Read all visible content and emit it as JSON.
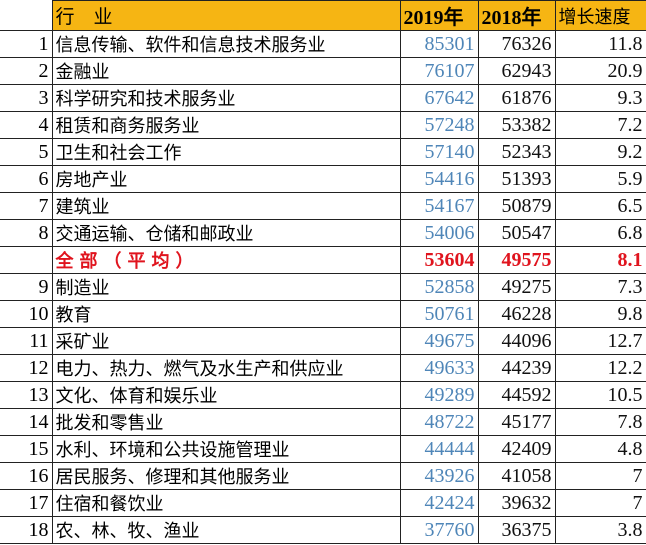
{
  "header": {
    "industry": "行　业",
    "y2019": "2019年",
    "y2018": "2018年",
    "growth": "增长速度"
  },
  "colors": {
    "header_bg": "#F6B513",
    "value_2019": "#4F86B8",
    "average_row": "#E0141E"
  },
  "rows": [
    {
      "idx": "1",
      "name": "信息传输、软件和信息技术服务业",
      "v2019": "85301",
      "v2018": "76326",
      "growth": "11.8"
    },
    {
      "idx": "2",
      "name": "金融业",
      "v2019": "76107",
      "v2018": "62943",
      "growth": "20.9"
    },
    {
      "idx": "3",
      "name": "科学研究和技术服务业",
      "v2019": "67642",
      "v2018": "61876",
      "growth": "9.3"
    },
    {
      "idx": "4",
      "name": "租赁和商务服务业",
      "v2019": "57248",
      "v2018": "53382",
      "growth": "7.2"
    },
    {
      "idx": "5",
      "name": "卫生和社会工作",
      "v2019": "57140",
      "v2018": "52343",
      "growth": "9.2"
    },
    {
      "idx": "6",
      "name": "房地产业",
      "v2019": "54416",
      "v2018": "51393",
      "growth": "5.9"
    },
    {
      "idx": "7",
      "name": "建筑业",
      "v2019": "54167",
      "v2018": "50879",
      "growth": "6.5"
    },
    {
      "idx": "8",
      "name": "交通运输、仓储和邮政业",
      "v2019": "54006",
      "v2018": "50547",
      "growth": "6.8"
    },
    {
      "idx": "",
      "name": "全部（平均）",
      "v2019": "53604",
      "v2018": "49575",
      "growth": "8.1",
      "average": true
    },
    {
      "idx": "9",
      "name": "制造业",
      "v2019": "52858",
      "v2018": "49275",
      "growth": "7.3"
    },
    {
      "idx": "10",
      "name": "教育",
      "v2019": "50761",
      "v2018": "46228",
      "growth": "9.8"
    },
    {
      "idx": "11",
      "name": "采矿业",
      "v2019": "49675",
      "v2018": "44096",
      "growth": "12.7"
    },
    {
      "idx": "12",
      "name": "电力、热力、燃气及水生产和供应业",
      "v2019": "49633",
      "v2018": "44239",
      "growth": "12.2"
    },
    {
      "idx": "13",
      "name": "文化、体育和娱乐业",
      "v2019": "49289",
      "v2018": "44592",
      "growth": "10.5"
    },
    {
      "idx": "14",
      "name": "批发和零售业",
      "v2019": "48722",
      "v2018": "45177",
      "growth": "7.8"
    },
    {
      "idx": "15",
      "name": "水利、环境和公共设施管理业",
      "v2019": "44444",
      "v2018": "42409",
      "growth": "4.8"
    },
    {
      "idx": "16",
      "name": "居民服务、修理和其他服务业",
      "v2019": "43926",
      "v2018": "41058",
      "growth": "7"
    },
    {
      "idx": "17",
      "name": "住宿和餐饮业",
      "v2019": "42424",
      "v2018": "39632",
      "growth": "7"
    },
    {
      "idx": "18",
      "name": "农、林、牧、渔业",
      "v2019": "37760",
      "v2018": "36375",
      "growth": "3.8"
    }
  ]
}
